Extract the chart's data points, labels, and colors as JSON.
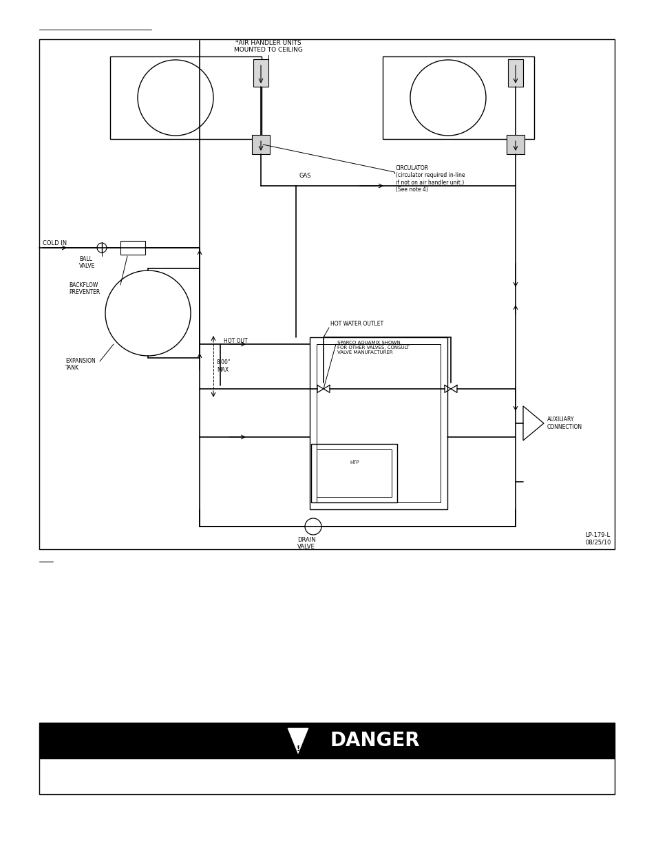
{
  "bg_color": "#ffffff",
  "lc": "#000000",
  "lp_text": "LP-179-L\n08/25/10",
  "danger_text": "DANGER",
  "labels": {
    "air_handler": "*AIR HANDLER UNITS\nMOUNTED TO CEILING",
    "cold_in": "COLD IN",
    "ball_valve": "BALL\nVALVE",
    "backflow": "BACKFLOW\nPREVENTER",
    "expansion_tank": "EXPANSION\nTANK",
    "hot_out": "HOT OUT",
    "gas": "GAS",
    "sparco": "SPARCO AQUAMIX SHOWN,\nFOR OTHER VALVES, CONSULT\nVALVE MANUFACTURER",
    "hot_water_outlet": "HOT WATER OUTLET",
    "circulator": "CIRCULATOR\n(circulator required in-line\nif not on air handler unit.)\n(See note 4)",
    "auxiliary": "AUXILIARY\nCONNECTION",
    "drain_valve": "DRAIN\nVALVE",
    "eight_max": "8.00\"\nMAX"
  }
}
